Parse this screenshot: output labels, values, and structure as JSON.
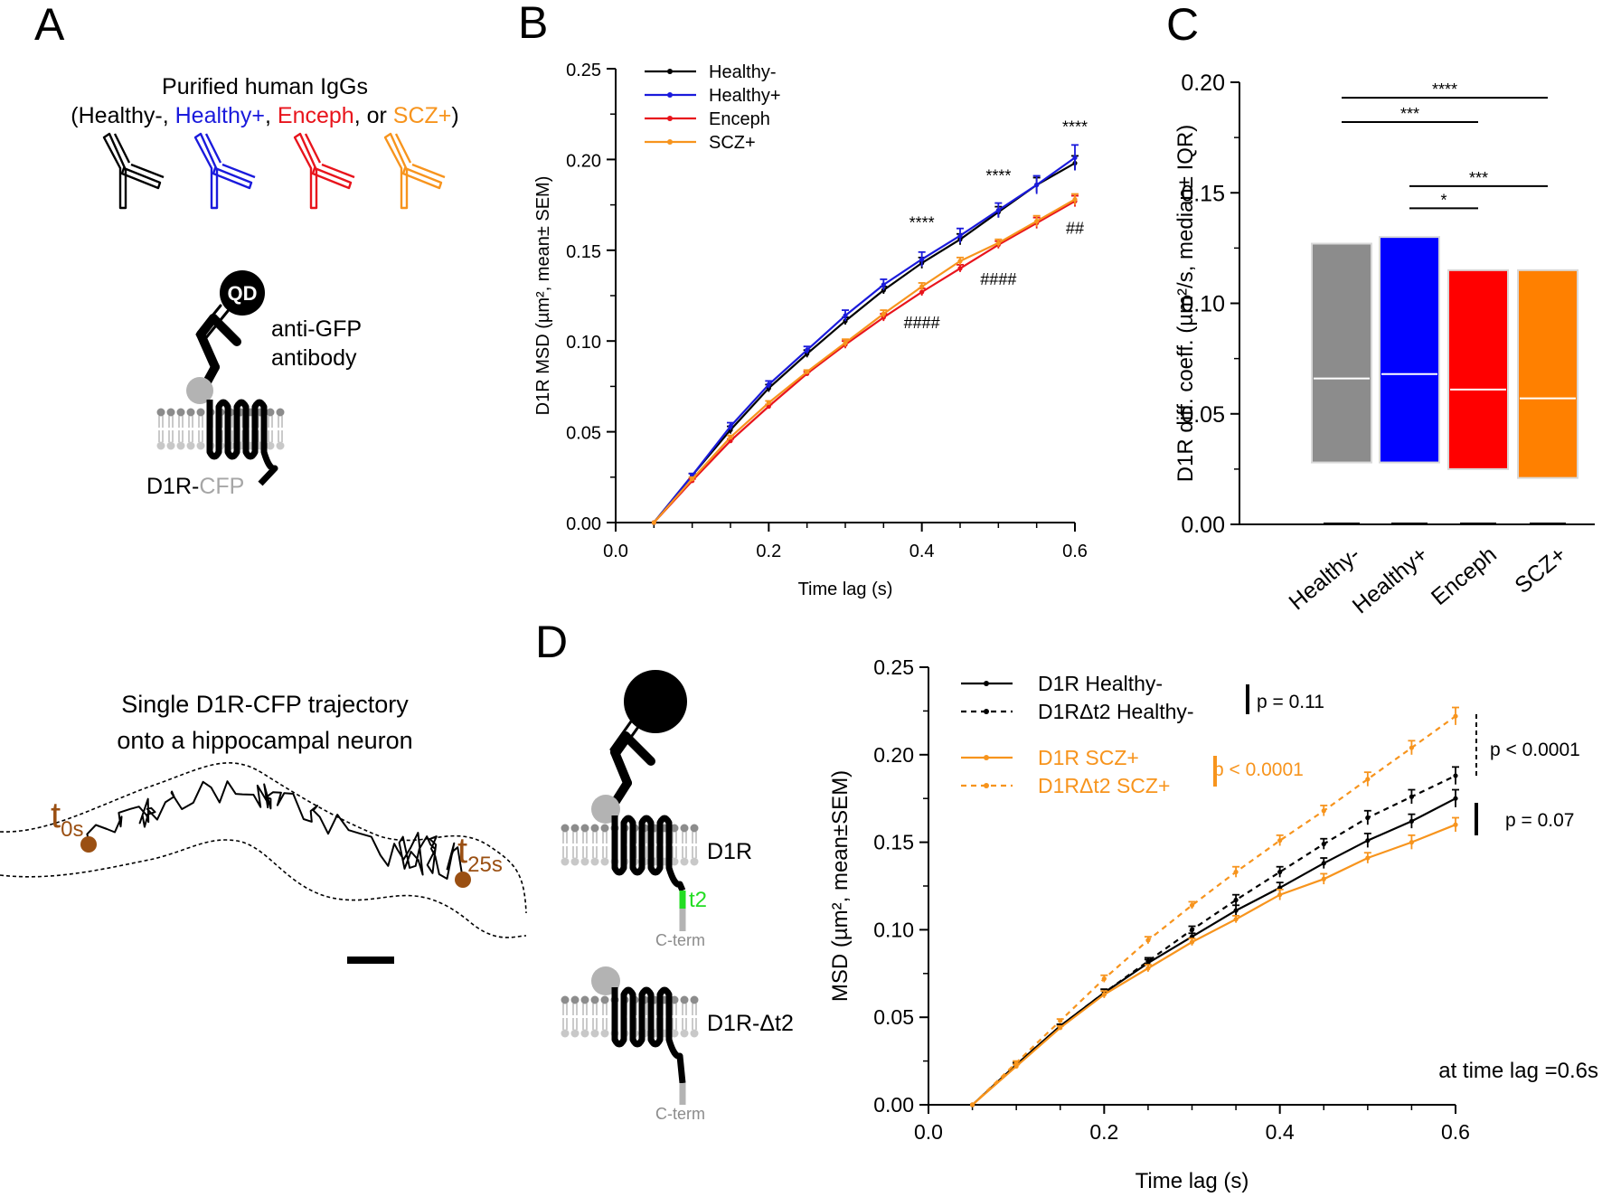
{
  "panels": {
    "A": {
      "letter": "A",
      "title_line1": "Purified human IgGs",
      "title_line2": [
        {
          "text": "(Healthy-, ",
          "color": "#000000"
        },
        {
          "text": "Healthy+",
          "color": "#1a1adc"
        },
        {
          "text": ", ",
          "color": "#000000"
        },
        {
          "text": "Enceph",
          "color": "#e8141c"
        },
        {
          "text": ", or ",
          "color": "#000000"
        },
        {
          "text": "SCZ+",
          "color": "#f7941d"
        },
        {
          "text": ")",
          "color": "#000000"
        }
      ],
      "antibody_colors": [
        "#000000",
        "#1a1adc",
        "#e8141c",
        "#f7941d"
      ],
      "qd_label": "QD",
      "anti_gfp_line1": "anti-GFP",
      "anti_gfp_line2": "antibody",
      "receptor_label_black": "D1R-",
      "receptor_label_grey": "CFP",
      "trajectory_title_line1": "Single D1R-CFP trajectory",
      "trajectory_title_line2": "onto a hippocampal neuron",
      "t0_main": "t",
      "t0_sub": "0s",
      "t25_main": "t",
      "t25_sub": "25s",
      "brown": "#9a4f12"
    },
    "B": {
      "letter": "B"
    },
    "C": {
      "letter": "C"
    },
    "D": {
      "letter": "D",
      "receptor1_label": "D1R",
      "receptor2_label": "D1R-Δt2",
      "t2_label": "t2",
      "cterm1": "C-term",
      "cterm2": "C-term",
      "footnote": "at time lag =0.6s"
    }
  },
  "colors": {
    "healthy_minus": "#000000",
    "healthy_plus": "#1a1adc",
    "enceph": "#e8141c",
    "scz_plus": "#f7941d",
    "box_grey": "#8c8c8c",
    "box_blue": "#0000ff",
    "box_red": "#ff0000",
    "box_orange": "#ff8000",
    "t2_green": "#22dd22"
  },
  "chart_data": [
    {
      "id": "B",
      "type": "line",
      "title": "",
      "xlabel": "Time lag (s)",
      "ylabel": "D1R MSD (µm², mean± SEM)",
      "xlim": [
        0,
        0.6
      ],
      "ylim": [
        0,
        0.25
      ],
      "xticks": [
        "0.0",
        "0.2",
        "0.4",
        "0.6"
      ],
      "yticks": [
        "0.00",
        "0.05",
        "0.10",
        "0.15",
        "0.20",
        "0.25"
      ],
      "x": [
        0.05,
        0.1,
        0.15,
        0.2,
        0.25,
        0.3,
        0.35,
        0.4,
        0.45,
        0.5,
        0.55,
        0.6
      ],
      "series": [
        {
          "name": "Healthy-",
          "color": "#000000",
          "values": [
            0,
            0.026,
            0.051,
            0.074,
            0.093,
            0.111,
            0.128,
            0.143,
            0.156,
            0.171,
            0.186,
            0.198
          ],
          "err": [
            0,
            0.001,
            0.002,
            0.002,
            0.002,
            0.002,
            0.002,
            0.003,
            0.003,
            0.003,
            0.004,
            0.004
          ]
        },
        {
          "name": "Healthy+",
          "color": "#1a1adc",
          "values": [
            0,
            0.026,
            0.053,
            0.076,
            0.095,
            0.114,
            0.131,
            0.145,
            0.158,
            0.172,
            0.186,
            0.201
          ],
          "err": [
            0,
            0.001,
            0.002,
            0.002,
            0.002,
            0.003,
            0.003,
            0.004,
            0.004,
            0.004,
            0.005,
            0.007
          ]
        },
        {
          "name": "Enceph",
          "color": "#e8141c",
          "values": [
            0,
            0.023,
            0.045,
            0.064,
            0.082,
            0.098,
            0.113,
            0.127,
            0.14,
            0.153,
            0.165,
            0.177
          ],
          "err": [
            0,
            0.001,
            0.001,
            0.001,
            0.001,
            0.002,
            0.002,
            0.002,
            0.002,
            0.002,
            0.003,
            0.003
          ]
        },
        {
          "name": "SCZ+",
          "color": "#f7941d",
          "values": [
            0,
            0.024,
            0.047,
            0.066,
            0.083,
            0.099,
            0.115,
            0.13,
            0.144,
            0.154,
            0.166,
            0.178
          ],
          "err": [
            0,
            0.001,
            0.001,
            0.001,
            0.001,
            0.002,
            0.002,
            0.002,
            0.002,
            0.002,
            0.003,
            0.003
          ]
        }
      ],
      "annotations": [
        {
          "text": "****",
          "x": 0.4,
          "y": 0.162
        },
        {
          "text": "****",
          "x": 0.5,
          "y": 0.188
        },
        {
          "text": "****",
          "x": 0.6,
          "y": 0.215
        },
        {
          "text": "####",
          "x": 0.4,
          "y": 0.107
        },
        {
          "text": "####",
          "x": 0.5,
          "y": 0.131
        },
        {
          "text": "##",
          "x": 0.6,
          "y": 0.159
        }
      ],
      "legend": "top-left"
    },
    {
      "id": "C",
      "type": "bar",
      "title": "",
      "xlabel": "",
      "ylabel": "D1R diff. coeff. (µm²/s, median± IQR)",
      "ylim": [
        0,
        0.2
      ],
      "yticks": [
        "0.00",
        "0.05",
        "0.10",
        "0.15",
        "0.20"
      ],
      "categories": [
        "Healthy-",
        "Healthy+",
        "Enceph",
        "SCZ+"
      ],
      "colors": [
        "#8c8c8c",
        "#0000ff",
        "#ff0000",
        "#ff8000"
      ],
      "q1": [
        0.028,
        0.028,
        0.025,
        0.021
      ],
      "median": [
        0.066,
        0.068,
        0.061,
        0.057
      ],
      "q3": [
        0.127,
        0.13,
        0.115,
        0.115
      ],
      "significance": [
        {
          "from": 0,
          "to": 3,
          "label": "****",
          "y": 0.193
        },
        {
          "from": 0,
          "to": 2,
          "label": "***",
          "y": 0.182
        },
        {
          "from": 1,
          "to": 3,
          "label": "***",
          "y": 0.153
        },
        {
          "from": 1,
          "to": 2,
          "label": "*",
          "y": 0.143
        }
      ]
    },
    {
      "id": "D",
      "type": "line",
      "title": "",
      "xlabel": "Time lag (s)",
      "ylabel": "MSD (µm², mean±SEM)",
      "xlim": [
        0,
        0.6
      ],
      "ylim": [
        0,
        0.25
      ],
      "xticks": [
        "0.0",
        "0.2",
        "0.4",
        "0.6"
      ],
      "yticks": [
        "0.00",
        "0.05",
        "0.10",
        "0.15",
        "0.20",
        "0.25"
      ],
      "x": [
        0.05,
        0.1,
        0.15,
        0.2,
        0.25,
        0.3,
        0.35,
        0.4,
        0.45,
        0.5,
        0.55,
        0.6
      ],
      "series": [
        {
          "name": "D1R Healthy-",
          "color": "#000000",
          "dash": false,
          "values": [
            0,
            0.023,
            0.045,
            0.064,
            0.081,
            0.096,
            0.111,
            0.124,
            0.138,
            0.151,
            0.162,
            0.175
          ],
          "err": [
            0,
            0.001,
            0.001,
            0.002,
            0.002,
            0.002,
            0.003,
            0.003,
            0.003,
            0.004,
            0.004,
            0.005
          ]
        },
        {
          "name": "D1RΔt2 Healthy-",
          "color": "#000000",
          "dash": true,
          "values": [
            0,
            0.023,
            0.045,
            0.064,
            0.082,
            0.1,
            0.117,
            0.133,
            0.149,
            0.164,
            0.176,
            0.188
          ],
          "err": [
            0,
            0.001,
            0.001,
            0.002,
            0.002,
            0.002,
            0.003,
            0.003,
            0.003,
            0.004,
            0.004,
            0.005
          ]
        },
        {
          "name": "D1R SCZ+",
          "color": "#f7941d",
          "dash": false,
          "values": [
            0,
            0.022,
            0.044,
            0.063,
            0.078,
            0.093,
            0.106,
            0.12,
            0.129,
            0.141,
            0.15,
            0.16
          ],
          "err": [
            0,
            0.001,
            0.001,
            0.002,
            0.002,
            0.002,
            0.002,
            0.003,
            0.003,
            0.003,
            0.004,
            0.004
          ]
        },
        {
          "name": "D1RΔt2 SCZ+",
          "color": "#f7941d",
          "dash": true,
          "values": [
            0,
            0.024,
            0.048,
            0.072,
            0.094,
            0.114,
            0.133,
            0.151,
            0.168,
            0.186,
            0.204,
            0.222
          ],
          "err": [
            0,
            0.001,
            0.001,
            0.002,
            0.002,
            0.002,
            0.003,
            0.003,
            0.003,
            0.004,
            0.004,
            0.005
          ]
        }
      ],
      "stats": [
        {
          "label": "p = 0.11",
          "color": "#000000",
          "pair": "legend-black"
        },
        {
          "label": "p < 0.0001",
          "color": "#f7941d",
          "pair": "legend-orange"
        },
        {
          "label": "p < 0.0001",
          "color": "#000000",
          "pair": "D1RΔt2 Healthy- vs D1RΔt2 SCZ+"
        },
        {
          "label": "p = 0.07",
          "color": "#000000",
          "pair": "D1R Healthy- vs D1R SCZ+"
        }
      ],
      "legend": "top-left"
    }
  ]
}
